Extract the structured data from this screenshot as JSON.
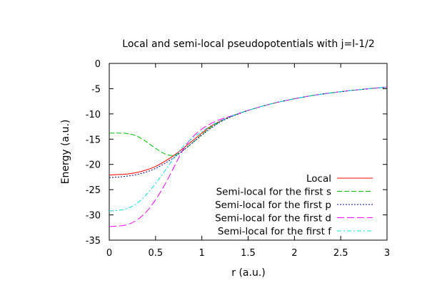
{
  "chart_data": {
    "type": "line",
    "title": "Local and semi-local pseudopotentials with j=l-1/2",
    "xlabel": "r (a.u.)",
    "ylabel": "Energy (a.u.)",
    "xlim": [
      0,
      3
    ],
    "ylim": [
      -35,
      0
    ],
    "xticks": [
      0,
      0.5,
      1,
      1.5,
      2,
      2.5,
      3
    ],
    "xtick_labels": [
      "0",
      "0.5",
      "1",
      "1.5",
      "2",
      "2.5",
      "3"
    ],
    "yticks": [
      0,
      -5,
      -10,
      -15,
      -20,
      -25,
      -30,
      -35
    ],
    "ytick_labels": [
      "0",
      "-5",
      "-10",
      "-15",
      "-20",
      "-25",
      "-30",
      "-35"
    ],
    "grid": false,
    "legend_position": "bottom-right",
    "series": [
      {
        "name": "Local",
        "color": "#ff0000",
        "dash": "solid",
        "x": [
          0,
          0.1,
          0.2,
          0.3,
          0.4,
          0.5,
          0.6,
          0.7,
          0.8,
          0.9,
          1.0,
          1.1,
          1.2,
          1.3,
          1.4,
          1.5,
          1.75,
          2.0,
          2.25,
          2.5,
          2.75,
          3.0
        ],
        "y": [
          -22.1,
          -22.0,
          -21.9,
          -21.6,
          -21.1,
          -20.4,
          -19.4,
          -18.2,
          -16.8,
          -15.3,
          -13.8,
          -12.4,
          -11.4,
          -10.6,
          -9.9,
          -9.3,
          -8.0,
          -7.0,
          -6.2,
          -5.6,
          -5.1,
          -4.7
        ]
      },
      {
        "name": "Semi-local for the first s",
        "color": "#00c000",
        "dash": "7,3",
        "x": [
          0,
          0.1,
          0.2,
          0.3,
          0.4,
          0.5,
          0.6,
          0.7,
          0.8,
          0.9,
          1.0,
          1.1,
          1.2,
          1.3,
          1.4,
          1.5,
          1.75,
          2.0,
          2.25,
          2.5,
          2.75,
          3.0
        ],
        "y": [
          -13.8,
          -13.8,
          -13.9,
          -14.4,
          -15.5,
          -16.8,
          -17.9,
          -18.2,
          -17.2,
          -15.7,
          -14.1,
          -12.6,
          -11.5,
          -10.6,
          -9.9,
          -9.3,
          -8.0,
          -7.0,
          -6.2,
          -5.6,
          -5.1,
          -4.7
        ]
      },
      {
        "name": "Semi-local for the first p",
        "color": "#0000a0",
        "dash": "2,2",
        "x": [
          0,
          0.1,
          0.2,
          0.3,
          0.4,
          0.5,
          0.6,
          0.7,
          0.8,
          0.9,
          1.0,
          1.1,
          1.2,
          1.3,
          1.4,
          1.5,
          1.75,
          2.0,
          2.25,
          2.5,
          2.75,
          3.0
        ],
        "y": [
          -22.6,
          -22.5,
          -22.3,
          -22.0,
          -21.5,
          -20.8,
          -19.8,
          -18.6,
          -17.2,
          -15.7,
          -14.2,
          -12.8,
          -11.6,
          -10.7,
          -10.0,
          -9.3,
          -8.0,
          -7.0,
          -6.2,
          -5.6,
          -5.1,
          -4.7
        ]
      },
      {
        "name": "Semi-local for the first d",
        "color": "#ff00ff",
        "dash": "10,4",
        "x": [
          0,
          0.1,
          0.2,
          0.3,
          0.4,
          0.5,
          0.6,
          0.7,
          0.8,
          0.9,
          1.0,
          1.1,
          1.2,
          1.3,
          1.4,
          1.5,
          1.75,
          2.0,
          2.25,
          2.5,
          2.75,
          3.0
        ],
        "y": [
          -32.3,
          -32.2,
          -31.9,
          -31.0,
          -29.4,
          -27.0,
          -24.0,
          -20.5,
          -17.0,
          -14.6,
          -13.0,
          -11.9,
          -11.1,
          -10.5,
          -9.9,
          -9.3,
          -8.0,
          -7.0,
          -6.2,
          -5.6,
          -5.1,
          -4.7
        ]
      },
      {
        "name": "Semi-local for the first f",
        "color": "#00e0e0",
        "dash": "6,3,2,3",
        "x": [
          0,
          0.1,
          0.2,
          0.3,
          0.4,
          0.5,
          0.6,
          0.7,
          0.8,
          0.9,
          1.0,
          1.1,
          1.2,
          1.3,
          1.4,
          1.5,
          1.75,
          2.0,
          2.25,
          2.5,
          2.75,
          3.0
        ],
        "y": [
          -29.2,
          -29.1,
          -28.7,
          -27.7,
          -26.0,
          -23.8,
          -21.3,
          -18.7,
          -16.4,
          -14.8,
          -13.5,
          -12.3,
          -11.4,
          -10.6,
          -9.9,
          -9.3,
          -8.0,
          -7.0,
          -6.2,
          -5.6,
          -5.1,
          -4.7
        ]
      }
    ]
  }
}
